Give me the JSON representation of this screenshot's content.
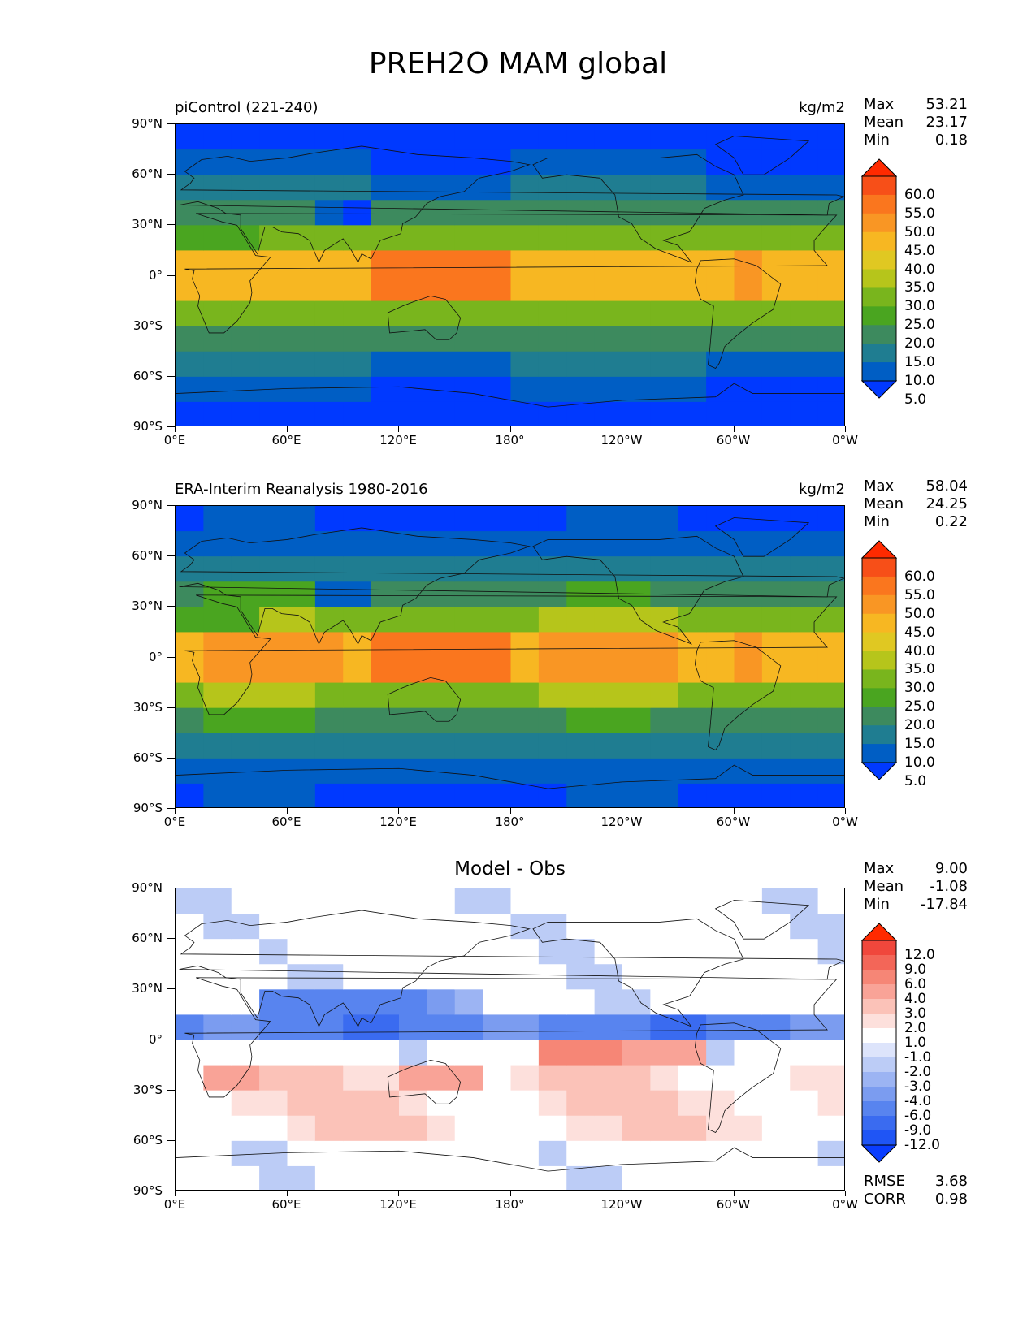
{
  "figure_title": "PREH2O MAM global",
  "colors": {
    "abs_levels": [
      "#0039ff",
      "#005ec4",
      "#1f7d91",
      "#3d8a5e",
      "#4aa520",
      "#79b51d",
      "#b6c51b",
      "#e0c822",
      "#f7b722",
      "#f99624",
      "#fa761e",
      "#f74f18",
      "#ff2a00"
    ],
    "diff_levels": [
      "#0a3dff",
      "#1f55f5",
      "#3a6bf0",
      "#5884ef",
      "#7b9cf0",
      "#9cb4f3",
      "#bcccf6",
      "#dde4fb",
      "#ffffff",
      "#fde0dc",
      "#fbc2b8",
      "#f9a397",
      "#f68676",
      "#f36658",
      "#f0473c",
      "#ff2a00"
    ]
  },
  "chart_data": [
    {
      "type": "heatmap",
      "title": "piControl (221-240)",
      "units": "kg/m2",
      "stats": {
        "max_label": "Max",
        "max": "53.21",
        "mean_label": "Mean",
        "mean": "23.17",
        "min_label": "Min",
        "min": "0.18"
      },
      "colorbar_ticks": [
        "60.0",
        "55.0",
        "50.0",
        "45.0",
        "40.0",
        "35.0",
        "30.0",
        "25.0",
        "20.0",
        "15.0",
        "10.0",
        "5.0"
      ],
      "ytick_labels": [
        "90°N",
        "60°N",
        "30°N",
        "0°",
        "30°S",
        "60°S",
        "90°S"
      ],
      "xtick_labels": [
        "0°E",
        "60°E",
        "120°E",
        "180°",
        "120°W",
        "60°W",
        "0°W"
      ],
      "lat_range": [
        -90,
        90
      ],
      "lon_range": [
        0,
        360
      ]
    },
    {
      "type": "heatmap",
      "title": "ERA-Interim Reanalysis 1980-2016",
      "units": "kg/m2",
      "stats": {
        "max_label": "Max",
        "max": "58.04",
        "mean_label": "Mean",
        "mean": "24.25",
        "min_label": "Min",
        "min": "0.22"
      },
      "colorbar_ticks": [
        "60.0",
        "55.0",
        "50.0",
        "45.0",
        "40.0",
        "35.0",
        "30.0",
        "25.0",
        "20.0",
        "15.0",
        "10.0",
        "5.0"
      ],
      "ytick_labels": [
        "90°N",
        "60°N",
        "30°N",
        "0°",
        "30°S",
        "60°S",
        "90°S"
      ],
      "xtick_labels": [
        "0°E",
        "60°E",
        "120°E",
        "180°",
        "120°W",
        "60°W",
        "0°W"
      ],
      "lat_range": [
        -90,
        90
      ],
      "lon_range": [
        0,
        360
      ]
    },
    {
      "type": "heatmap",
      "title": "Model - Obs",
      "units": "",
      "stats": {
        "max_label": "Max",
        "max": "9.00",
        "mean_label": "Mean",
        "mean": "-1.08",
        "min_label": "Min",
        "min": "-17.84"
      },
      "colorbar_ticks": [
        "12.0",
        "9.0",
        "6.0",
        "4.0",
        "3.0",
        "2.0",
        "1.0",
        "-1.0",
        "-2.0",
        "-3.0",
        "-4.0",
        "-6.0",
        "-9.0",
        "-12.0"
      ],
      "ytick_labels": [
        "90°N",
        "60°N",
        "30°N",
        "0°",
        "30°S",
        "60°S",
        "90°S"
      ],
      "xtick_labels": [
        "0°E",
        "60°E",
        "120°E",
        "180°",
        "120°W",
        "60°W",
        "0°W"
      ],
      "lat_range": [
        -90,
        90
      ],
      "lon_range": [
        0,
        360
      ],
      "footer": {
        "rmse_label": "RMSE",
        "rmse": "3.68",
        "corr_label": "CORR",
        "corr": "0.98"
      }
    }
  ]
}
